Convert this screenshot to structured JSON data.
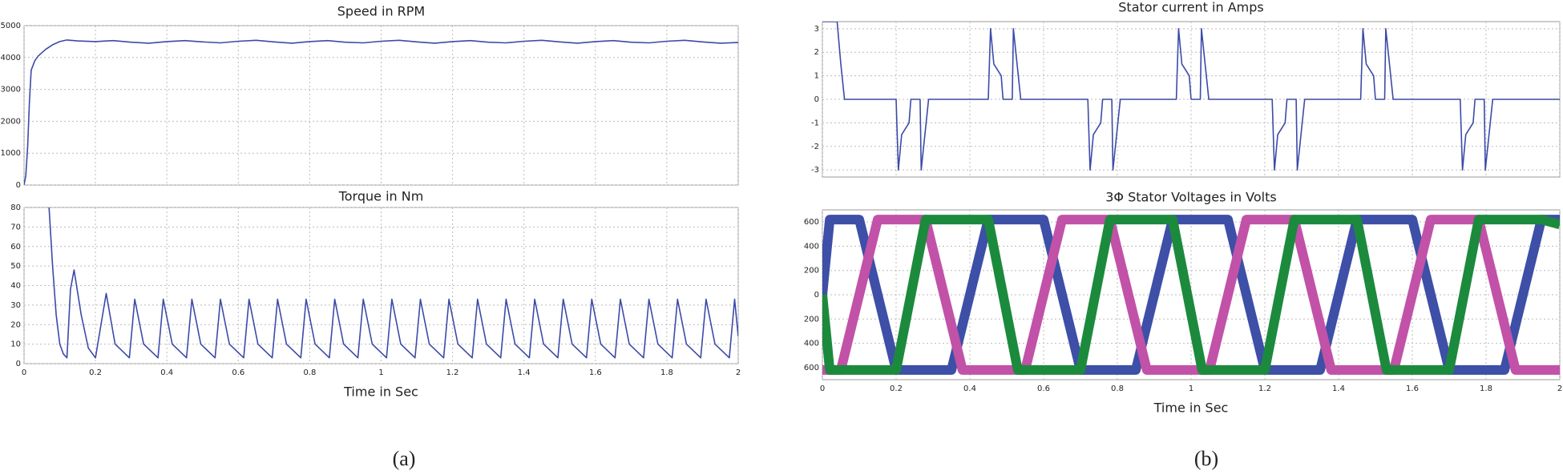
{
  "chart_data": [
    {
      "type": "line",
      "title": "Speed in RPM",
      "xlim": [
        0,
        2
      ],
      "ylim": [
        0,
        5000
      ],
      "xticks": [
        0,
        0.2,
        0.4,
        0.6,
        0.8,
        1,
        1.2,
        1.4,
        1.6,
        1.8,
        2
      ],
      "xtick_labels": false,
      "yticks": [
        0,
        1000,
        2000,
        3000,
        4000,
        5000
      ],
      "grid": true,
      "color": "#3c4aa8",
      "x": [
        0,
        0.005,
        0.01,
        0.015,
        0.02,
        0.03,
        0.04,
        0.06,
        0.08,
        0.1,
        0.12,
        0.15,
        0.2,
        0.25,
        0.3,
        0.35,
        0.4,
        0.45,
        0.5,
        0.55,
        0.6,
        0.65,
        0.7,
        0.75,
        0.8,
        0.85,
        0.9,
        0.95,
        1,
        1.05,
        1.1,
        1.15,
        1.2,
        1.25,
        1.3,
        1.35,
        1.4,
        1.45,
        1.5,
        1.55,
        1.6,
        1.65,
        1.7,
        1.75,
        1.8,
        1.85,
        1.9,
        1.95,
        2
      ],
      "values": [
        0,
        300,
        1200,
        2600,
        3600,
        3900,
        4050,
        4250,
        4400,
        4500,
        4550,
        4520,
        4500,
        4530,
        4480,
        4450,
        4500,
        4530,
        4490,
        4460,
        4510,
        4540,
        4490,
        4450,
        4500,
        4530,
        4480,
        4460,
        4510,
        4540,
        4490,
        4450,
        4500,
        4530,
        4480,
        4460,
        4510,
        4540,
        4490,
        4450,
        4500,
        4530,
        4480,
        4460,
        4510,
        4540,
        4490,
        4450,
        4470
      ]
    },
    {
      "type": "line",
      "title": "Torque in Nm",
      "xlabel": "Time in Sec",
      "xlim": [
        0,
        2
      ],
      "ylim": [
        0,
        80
      ],
      "xticks": [
        0,
        0.2,
        0.4,
        0.6,
        0.8,
        1,
        1.2,
        1.4,
        1.6,
        1.8,
        2
      ],
      "xtick_labels": true,
      "yticks": [
        0,
        10,
        20,
        30,
        40,
        50,
        60,
        70,
        80
      ],
      "grid": true,
      "color": "#3c4aa8",
      "x": [
        0.07,
        0.08,
        0.09,
        0.1,
        0.11,
        0.12,
        0.13,
        0.14,
        0.16,
        0.18,
        0.2,
        0.23,
        0.255,
        0.295,
        0.31,
        0.335,
        0.375,
        0.39,
        0.415,
        0.455,
        0.47,
        0.495,
        0.535,
        0.55,
        0.575,
        0.615,
        0.63,
        0.655,
        0.695,
        0.71,
        0.735,
        0.775,
        0.79,
        0.815,
        0.855,
        0.87,
        0.895,
        0.935,
        0.95,
        0.975,
        1.015,
        1.03,
        1.055,
        1.095,
        1.11,
        1.135,
        1.175,
        1.19,
        1.215,
        1.255,
        1.27,
        1.295,
        1.335,
        1.35,
        1.375,
        1.415,
        1.43,
        1.455,
        1.495,
        1.51,
        1.535,
        1.575,
        1.59,
        1.615,
        1.655,
        1.67,
        1.695,
        1.735,
        1.75,
        1.775,
        1.815,
        1.83,
        1.855,
        1.895,
        1.91,
        1.935,
        1.975,
        1.99,
        2
      ],
      "values": [
        80,
        50,
        25,
        10,
        5,
        3,
        38,
        48,
        25,
        8,
        3,
        36,
        10,
        3,
        33,
        10,
        3,
        33,
        10,
        3,
        33,
        10,
        3,
        33,
        10,
        3,
        33,
        10,
        3,
        33,
        10,
        3,
        33,
        10,
        3,
        33,
        10,
        3,
        33,
        10,
        3,
        33,
        10,
        3,
        33,
        10,
        3,
        33,
        10,
        3,
        33,
        10,
        3,
        33,
        10,
        3,
        33,
        10,
        3,
        33,
        10,
        3,
        33,
        10,
        3,
        33,
        10,
        3,
        33,
        10,
        3,
        33,
        10,
        3,
        33,
        10,
        3,
        33,
        14
      ]
    },
    {
      "type": "line",
      "title": "Stator current in Amps",
      "xlim": [
        0,
        2
      ],
      "ylim": [
        -3.3,
        3.3
      ],
      "xticks": [
        0,
        0.2,
        0.4,
        0.6,
        0.8,
        1,
        1.2,
        1.4,
        1.6,
        1.8,
        2
      ],
      "xtick_labels": false,
      "yticks": [
        -3,
        -2,
        -1,
        0,
        1,
        2,
        3
      ],
      "grid": true,
      "color": "#3c4aa8",
      "x": [
        0,
        0.04,
        0.05,
        0.06,
        0.2,
        0.202,
        0.206,
        0.215,
        0.235,
        0.24,
        0.265,
        0.268,
        0.278,
        0.288,
        0.45,
        0.452,
        0.456,
        0.465,
        0.485,
        0.49,
        0.515,
        0.518,
        0.528,
        0.538,
        0.72,
        0.722,
        0.726,
        0.735,
        0.755,
        0.76,
        0.785,
        0.788,
        0.798,
        0.808,
        0.96,
        0.962,
        0.966,
        0.975,
        0.995,
        1.0,
        1.025,
        1.028,
        1.038,
        1.048,
        1.22,
        1.222,
        1.226,
        1.235,
        1.255,
        1.26,
        1.285,
        1.288,
        1.298,
        1.308,
        1.46,
        1.462,
        1.466,
        1.475,
        1.495,
        1.5,
        1.525,
        1.528,
        1.538,
        1.548,
        1.73,
        1.732,
        1.736,
        1.745,
        1.765,
        1.77,
        1.795,
        1.798,
        1.808,
        1.818,
        2
      ],
      "values": [
        3.3,
        3.3,
        1.5,
        0,
        0,
        -1,
        -3,
        -1.5,
        -1,
        0,
        0,
        -3,
        -1.5,
        0,
        0,
        1,
        3,
        1.5,
        1,
        0,
        0,
        3,
        1.5,
        0,
        0,
        -1,
        -3,
        -1.5,
        -1,
        0,
        0,
        -3,
        -1.5,
        0,
        0,
        1,
        3,
        1.5,
        1,
        0,
        0,
        3,
        1.5,
        0,
        0,
        -1,
        -3,
        -1.5,
        -1,
        0,
        0,
        -3,
        -1.5,
        0,
        0,
        1,
        3,
        1.5,
        1,
        0,
        0,
        3,
        1.5,
        0,
        0,
        -1,
        -3,
        -1.5,
        -1,
        0,
        0,
        -3,
        -1.5,
        0,
        0
      ]
    },
    {
      "type": "multiline",
      "title": "3Φ  Stator Voltages in Volts",
      "xlabel": "Time in Sec",
      "xlim": [
        0,
        2
      ],
      "ylim": [
        -700,
        700
      ],
      "xticks": [
        0,
        0.2,
        0.4,
        0.6,
        0.8,
        1,
        1.2,
        1.4,
        1.6,
        1.8,
        2
      ],
      "xtick_labels": true,
      "yticks": [
        {
          "value": -600,
          "label": "600"
        },
        {
          "value": -400,
          "label": "400"
        },
        {
          "value": -200,
          "label": "200"
        },
        0,
        200,
        400,
        600
      ],
      "grid": true,
      "series": [
        {
          "color": "#3d4fa6",
          "x": [
            0,
            0.02,
            0.1,
            0.2,
            0.35,
            0.45,
            0.6,
            0.7,
            0.85,
            0.95,
            1.1,
            1.2,
            1.35,
            1.45,
            1.6,
            1.7,
            1.85,
            1.95,
            2
          ],
          "values": [
            0,
            620,
            620,
            -620,
            -620,
            620,
            620,
            -620,
            -620,
            620,
            620,
            -620,
            -620,
            620,
            620,
            -620,
            -620,
            620,
            620
          ]
        },
        {
          "color": "#c152a8",
          "x": [
            0,
            0.05,
            0.15,
            0.28,
            0.38,
            0.55,
            0.65,
            0.78,
            0.88,
            1.05,
            1.15,
            1.28,
            1.38,
            1.55,
            1.65,
            1.78,
            1.88,
            2
          ],
          "values": [
            -620,
            -620,
            620,
            620,
            -620,
            -620,
            620,
            620,
            -620,
            -620,
            620,
            620,
            -620,
            -620,
            620,
            620,
            -620,
            -620
          ]
        },
        {
          "color": "#1c8a3c",
          "x": [
            0,
            0.02,
            0.2,
            0.28,
            0.45,
            0.53,
            0.7,
            0.78,
            0.95,
            1.03,
            1.2,
            1.28,
            1.45,
            1.53,
            1.7,
            1.78,
            1.95,
            2
          ],
          "values": [
            0,
            -620,
            -620,
            620,
            620,
            -620,
            -620,
            620,
            620,
            -620,
            -620,
            620,
            620,
            -620,
            -620,
            620,
            620,
            580
          ]
        }
      ]
    }
  ],
  "captions": [
    "(a)",
    "(b)"
  ]
}
